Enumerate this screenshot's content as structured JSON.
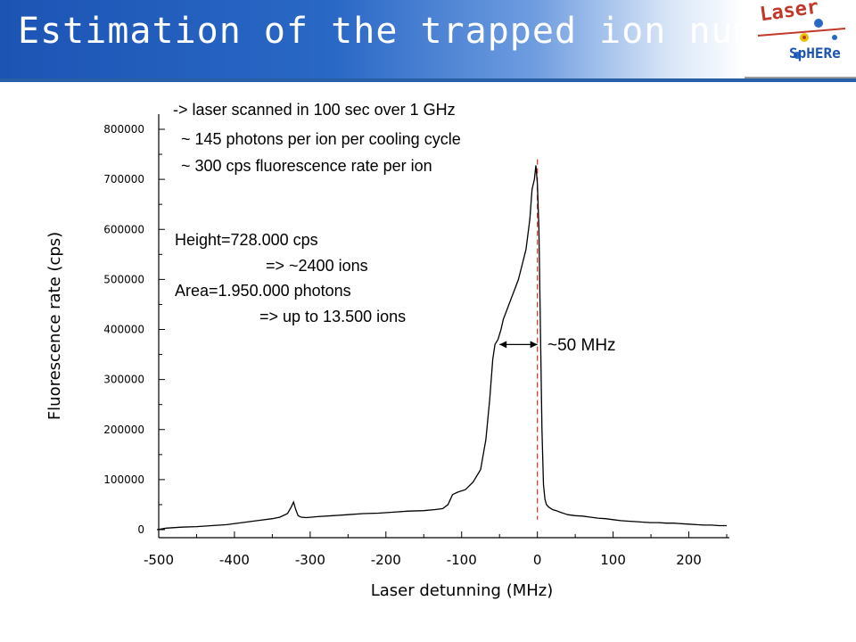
{
  "slide": {
    "title": "Estimation of the trapped ion number",
    "logo": {
      "text_top": "Laser",
      "text_bottom": "SpHERe"
    }
  },
  "annotations": {
    "line1": "-> laser scanned in 100 sec over 1 GHz",
    "line2": "~ 145 photons per ion per cooling cycle",
    "line3": "~ 300 cps fluorescence rate per ion",
    "height": "Height=728.000 cps",
    "height_ions": "=> ~2400 ions",
    "area": "Area=1.950.000 photons",
    "area_ions": "=> up to 13.500 ions",
    "fwhm": "~50 MHz"
  },
  "colors": {
    "title_blue": "#1c54b4",
    "trace": "#000000",
    "marker": "#d93025"
  },
  "chart_data": {
    "type": "line",
    "xlabel": "Laser detunning (MHz)",
    "ylabel": "Fluorescence rate (cps)",
    "xlim": [
      -500,
      250
    ],
    "ylim": [
      0,
      800000
    ],
    "xticks": [
      -500,
      -400,
      -300,
      -200,
      -100,
      0,
      100,
      200
    ],
    "yticks": [
      0,
      100000,
      200000,
      300000,
      400000,
      500000,
      600000,
      700000,
      800000
    ],
    "vertical_marker_x": 0,
    "fwhm_arrow": {
      "x_from": -50,
      "x_to": 0,
      "y": 370000,
      "label": "~50 MHz"
    },
    "series": [
      {
        "x": [
          -510,
          -490,
          -470,
          -450,
          -430,
          -410,
          -390,
          -370,
          -350,
          -340,
          -330,
          -325,
          -322,
          -319,
          -316,
          -312,
          -305,
          -290,
          -270,
          -250,
          -230,
          -210,
          -190,
          -170,
          -150,
          -135,
          -125,
          -118,
          -112,
          -105,
          -95,
          -85,
          -75,
          -68,
          -63,
          -59,
          -56,
          -52,
          -48,
          -45,
          -40,
          -35,
          -30,
          -25,
          -20,
          -15,
          -10,
          -7,
          -4,
          -2,
          0,
          2,
          4,
          6,
          8,
          10,
          12,
          15,
          20,
          25,
          30,
          40,
          50,
          60,
          70,
          80,
          90,
          100,
          110,
          120,
          130,
          140,
          150,
          160,
          170,
          180,
          190,
          200,
          210,
          220,
          230,
          240,
          250
        ],
        "y": [
          0,
          3000,
          5000,
          6000,
          8000,
          10000,
          14000,
          18000,
          22000,
          25000,
          32000,
          45000,
          55000,
          40000,
          28000,
          25000,
          24000,
          26000,
          28000,
          30000,
          32000,
          33000,
          35000,
          37000,
          38000,
          40000,
          42000,
          50000,
          70000,
          75000,
          80000,
          95000,
          120000,
          180000,
          260000,
          340000,
          370000,
          380000,
          400000,
          420000,
          440000,
          460000,
          480000,
          500000,
          530000,
          560000,
          620000,
          680000,
          700000,
          728000,
          690000,
          600000,
          400000,
          200000,
          90000,
          60000,
          50000,
          45000,
          40000,
          38000,
          35000,
          30000,
          28000,
          27000,
          25000,
          23000,
          22000,
          20000,
          18000,
          17000,
          16000,
          15000,
          14000,
          14000,
          13000,
          13000,
          12000,
          11000,
          10000,
          9000,
          9000,
          8000,
          8000
        ]
      }
    ]
  }
}
